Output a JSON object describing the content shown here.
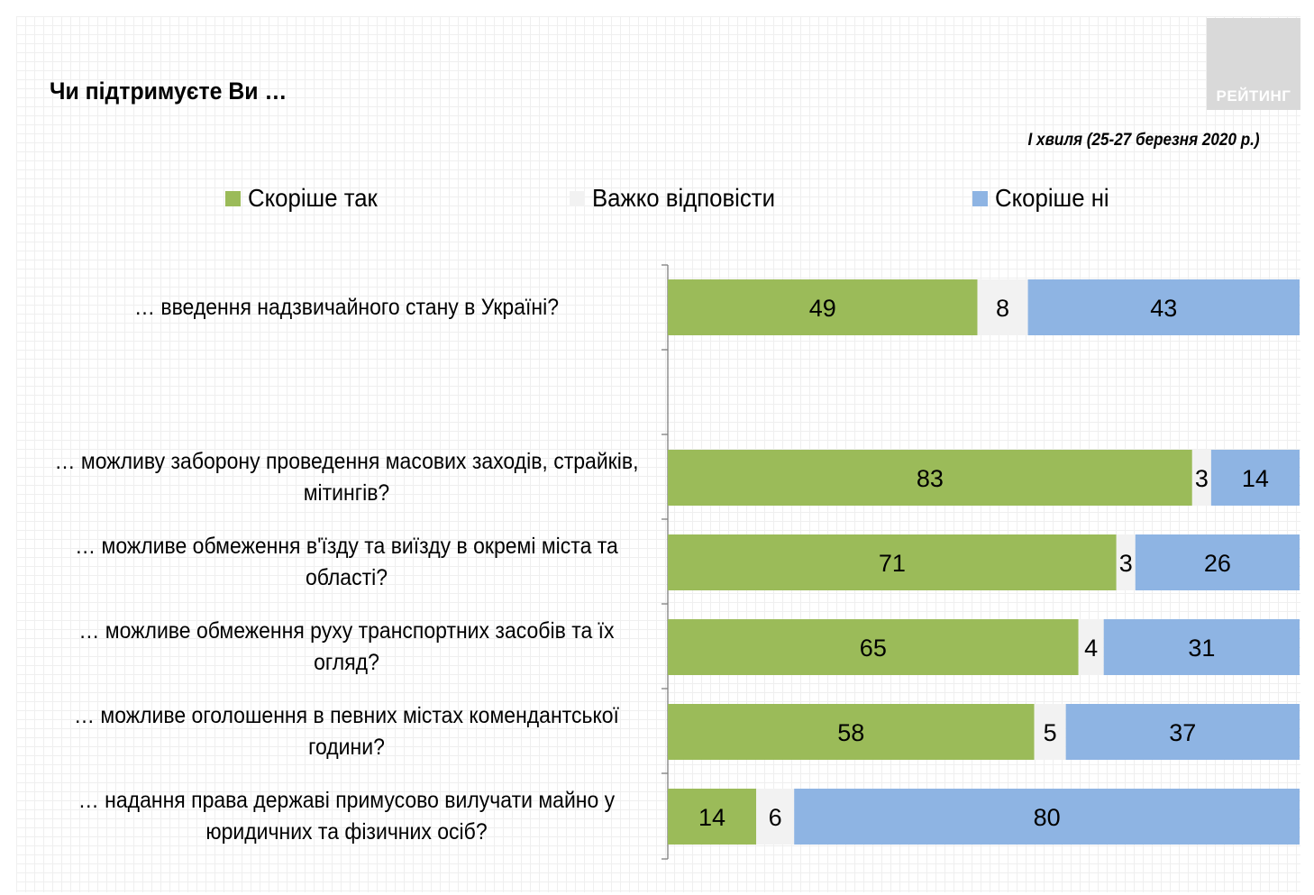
{
  "title": "Чи підтримуєте Ви …",
  "subtitle": "І хвиля (25-27 березня 2020 р.)",
  "logo_text": "РЕЙТИНГ",
  "colors": {
    "yes": "#9bbb59",
    "hard": "#f2f2f2",
    "no": "#8eb4e3"
  },
  "chart_data": {
    "type": "bar",
    "stacked": true,
    "orientation": "horizontal",
    "legend_position": "top",
    "categories": [
      "… введення надзвичайного стану в Україні?",
      "… можливу заборону проведення масових заходів, страйків, мітингів?",
      "… можливе обмеження в'їзду та виїзду в окремі міста та області?",
      "… можливе обмеження руху транспортних засобів та їх огляд?",
      "… можливе оголошення в певних містах комендантської години?",
      "… надання  права державі примусово вилучати майно у юридичних та фізичних осіб?"
    ],
    "series": [
      {
        "name": "Скоріше так",
        "values": [
          49,
          83,
          71,
          65,
          58,
          14
        ]
      },
      {
        "name": "Важко відповісти",
        "values": [
          8,
          3,
          3,
          4,
          5,
          6
        ]
      },
      {
        "name": "Скоріше ні",
        "values": [
          43,
          14,
          26,
          31,
          37,
          80
        ]
      }
    ],
    "xlim": [
      0,
      100
    ]
  }
}
